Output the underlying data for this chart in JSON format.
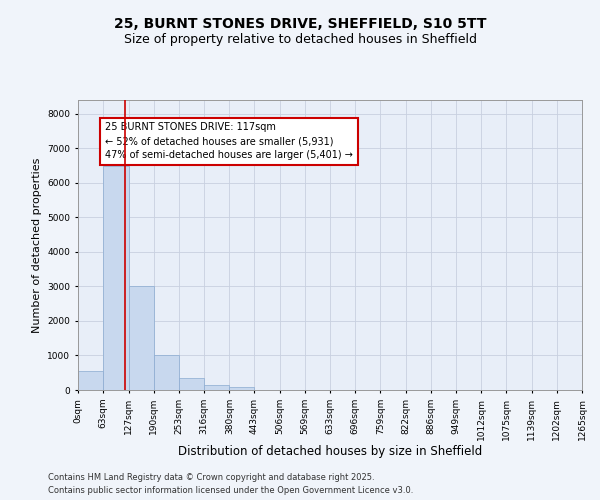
{
  "title_line1": "25, BURNT STONES DRIVE, SHEFFIELD, S10 5TT",
  "title_line2": "Size of property relative to detached houses in Sheffield",
  "xlabel": "Distribution of detached houses by size in Sheffield",
  "ylabel": "Number of detached properties",
  "bar_color": "#c8d8ee",
  "bar_edge_color": "#8aaad0",
  "grid_color": "#c8d0e0",
  "plot_bg_color": "#e8eef8",
  "fig_bg_color": "#f0f4fa",
  "red_line_color": "#cc0000",
  "red_line_x": 117,
  "annotation_text": "25 BURNT STONES DRIVE: 117sqm\n← 52% of detached houses are smaller (5,931)\n47% of semi-detached houses are larger (5,401) →",
  "annotation_box_facecolor": "#ffffff",
  "annotation_box_edgecolor": "#cc0000",
  "footer_text": "Contains HM Land Registry data © Crown copyright and database right 2025.\nContains public sector information licensed under the Open Government Licence v3.0.",
  "bin_edges": [
    0,
    63,
    127,
    190,
    253,
    316,
    380,
    443,
    506,
    569,
    633,
    696,
    759,
    822,
    886,
    949,
    1012,
    1075,
    1139,
    1202,
    1265
  ],
  "bar_heights": [
    560,
    6480,
    3000,
    1000,
    360,
    150,
    80,
    0,
    0,
    0,
    0,
    0,
    0,
    0,
    0,
    0,
    0,
    0,
    0,
    0
  ],
  "ylim": [
    0,
    8400
  ],
  "yticks": [
    0,
    1000,
    2000,
    3000,
    4000,
    5000,
    6000,
    7000,
    8000
  ],
  "tick_labels": [
    "0sqm",
    "63sqm",
    "127sqm",
    "190sqm",
    "253sqm",
    "316sqm",
    "380sqm",
    "443sqm",
    "506sqm",
    "569sqm",
    "633sqm",
    "696sqm",
    "759sqm",
    "822sqm",
    "886sqm",
    "949sqm",
    "1012sqm",
    "1075sqm",
    "1139sqm",
    "1202sqm",
    "1265sqm"
  ],
  "title_fontsize": 10,
  "subtitle_fontsize": 9,
  "xlabel_fontsize": 8.5,
  "ylabel_fontsize": 8,
  "tick_fontsize": 6.5,
  "annotation_fontsize": 7,
  "footer_fontsize": 6
}
